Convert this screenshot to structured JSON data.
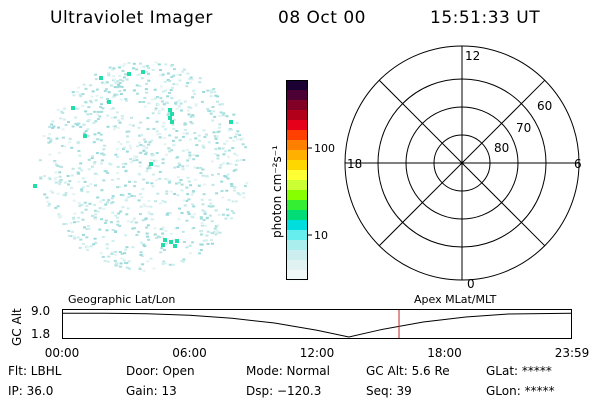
{
  "header": {
    "title": "Ultraviolet Imager",
    "date": "08 Oct 00",
    "time": "15:51:33 UT"
  },
  "colorbar": {
    "unit_label": "photon cm⁻²s⁻¹",
    "ticks": [
      "100",
      "10"
    ],
    "colors": [
      "#1a0033",
      "#4d0033",
      "#800026",
      "#b3001a",
      "#e6001a",
      "#ff4000",
      "#ff8000",
      "#ffb000",
      "#ffd700",
      "#ffff33",
      "#ccff33",
      "#88ff00",
      "#33ee33",
      "#00dd77",
      "#00dddd",
      "#66eeee",
      "#aaeeee",
      "#cceeee",
      "#e0f2f2",
      "#f0f8f8"
    ]
  },
  "polar": {
    "mlt_labels": {
      "top": "12",
      "left": "18",
      "right": "6",
      "bottom": "0"
    },
    "lat_labels": [
      "60",
      "70",
      "80"
    ]
  },
  "lower_panel": {
    "left_caption": "Geographic Lat/Lon",
    "right_caption": "Apex MLat/MLT",
    "y_axis_label": "GC Alt",
    "y_ticks": [
      "9.0",
      "1.8"
    ],
    "x_ticks": [
      "00:00",
      "06:00",
      "12:00",
      "18:00",
      "23:59"
    ]
  },
  "info": {
    "flt": "Flt: LBHL",
    "ip": "IP: 36.0",
    "door": "Door: Open",
    "gain": "Gain: 13",
    "mode": "Mode: Normal",
    "dsp": "Dsp: −120.3",
    "gcalt": "GC Alt: 5.6 Re",
    "seq": "Seq: 39",
    "glat": "GLat: *****",
    "glon": "GLon: *****"
  },
  "chart_data": {
    "type": "line",
    "title": "",
    "xlabel": "",
    "ylabel": "GC Alt",
    "x_ticks": [
      "00:00",
      "06:00",
      "12:00",
      "18:00",
      "23:59"
    ],
    "y_ticks": [
      9.0,
      1.8
    ],
    "ylim": [
      1.8,
      9.0
    ],
    "series": [
      {
        "x": [
          0,
          2,
          4,
          6,
          8,
          10,
          12,
          13.5,
          15,
          17,
          19,
          21,
          23.98
        ],
        "y": [
          8.95,
          8.95,
          8.8,
          8.3,
          7.4,
          6.0,
          3.8,
          1.8,
          4.0,
          6.3,
          7.8,
          8.7,
          8.95
        ]
      }
    ],
    "current_time_marker": 15.86
  }
}
